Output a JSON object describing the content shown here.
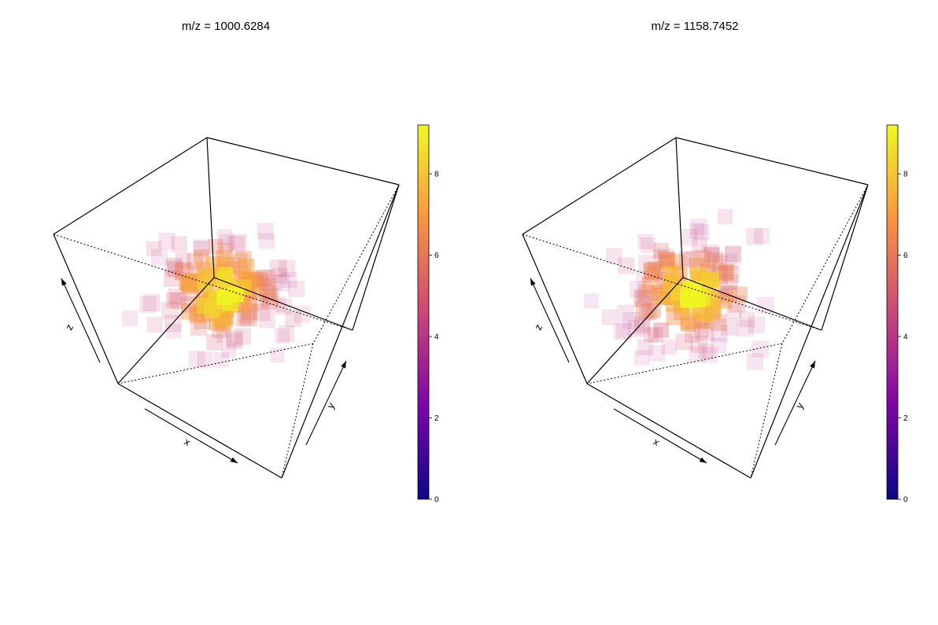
{
  "chart_data": [
    {
      "type": "scatter3d",
      "title": "m/z = 1000.6284",
      "xlabel": "x",
      "ylabel": "y",
      "zlabel": "z",
      "colorbar": {
        "ticks": [
          "0",
          "2",
          "4",
          "6",
          "8"
        ],
        "min": 0,
        "max": 9.2,
        "palette": "plasma"
      },
      "seed": 11
    },
    {
      "type": "scatter3d",
      "title": "m/z = 1158.7452",
      "xlabel": "x",
      "ylabel": "y",
      "zlabel": "z",
      "colorbar": {
        "ticks": [
          "0",
          "2",
          "4",
          "6",
          "8"
        ],
        "min": 0,
        "max": 9.2,
        "palette": "plasma"
      },
      "seed": 29
    }
  ]
}
